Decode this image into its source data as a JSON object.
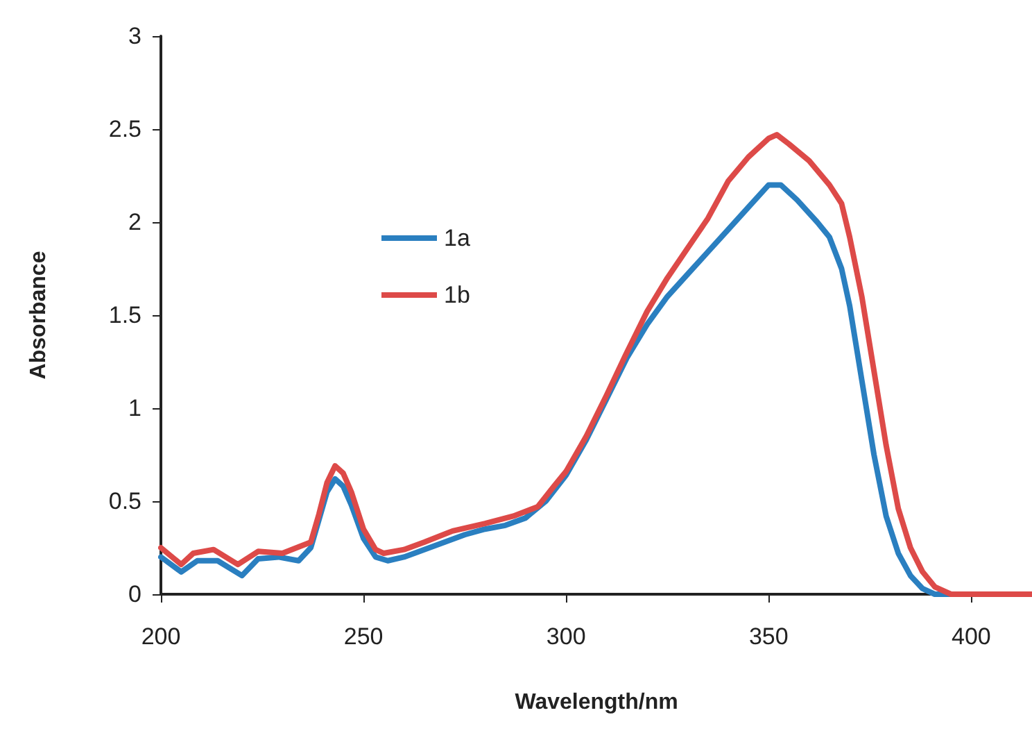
{
  "chart_data": {
    "type": "line",
    "xlabel": "Wavelength/nm",
    "ylabel": "Absorbance",
    "xlim": [
      200,
      415
    ],
    "xticks": [
      200,
      250,
      300,
      350,
      400
    ],
    "ylim": [
      0,
      3
    ],
    "yticks": [
      0,
      0.5,
      1,
      1.5,
      2,
      2.5,
      3
    ],
    "grid": false,
    "legend": "top left",
    "marker": "none",
    "line_style": "solid",
    "series": [
      {
        "name": "1a",
        "color": "#2a7fc0",
        "x": [
          200,
          205,
          209,
          214,
          220,
          224,
          229,
          234,
          237,
          239,
          241,
          243,
          245,
          247,
          250,
          253,
          256,
          260,
          265,
          270,
          275,
          280,
          285,
          290,
          295,
          300,
          305,
          310,
          315,
          320,
          325,
          330,
          335,
          340,
          345,
          350,
          353,
          357,
          362,
          365,
          368,
          370,
          373,
          376,
          379,
          382,
          385,
          388,
          391,
          415
        ],
        "values": [
          0.2,
          0.12,
          0.18,
          0.18,
          0.1,
          0.19,
          0.2,
          0.18,
          0.25,
          0.4,
          0.55,
          0.62,
          0.58,
          0.48,
          0.3,
          0.2,
          0.18,
          0.2,
          0.24,
          0.28,
          0.32,
          0.35,
          0.37,
          0.41,
          0.5,
          0.64,
          0.83,
          1.05,
          1.27,
          1.45,
          1.6,
          1.72,
          1.84,
          1.96,
          2.08,
          2.2,
          2.2,
          2.12,
          2.0,
          1.92,
          1.75,
          1.55,
          1.15,
          0.75,
          0.42,
          0.22,
          0.1,
          0.03,
          0,
          0
        ]
      },
      {
        "name": "1b",
        "color": "#dd4a48",
        "x": [
          200,
          205,
          208,
          213,
          219,
          224,
          230,
          237,
          239,
          241,
          243,
          245,
          247,
          250,
          253,
          255,
          260,
          265,
          272,
          280,
          287,
          293,
          297,
          300,
          305,
          310,
          315,
          320,
          325,
          330,
          335,
          340,
          345,
          350,
          352,
          355,
          360,
          365,
          368,
          370,
          373,
          376,
          379,
          382,
          385,
          388,
          391,
          395,
          415
        ],
        "values": [
          0.25,
          0.16,
          0.22,
          0.24,
          0.16,
          0.23,
          0.22,
          0.28,
          0.43,
          0.6,
          0.69,
          0.65,
          0.55,
          0.35,
          0.24,
          0.22,
          0.24,
          0.28,
          0.34,
          0.38,
          0.42,
          0.47,
          0.58,
          0.66,
          0.85,
          1.07,
          1.3,
          1.52,
          1.7,
          1.86,
          2.02,
          2.22,
          2.35,
          2.45,
          2.47,
          2.42,
          2.33,
          2.2,
          2.1,
          1.92,
          1.6,
          1.2,
          0.8,
          0.46,
          0.25,
          0.12,
          0.04,
          0,
          0
        ]
      }
    ]
  }
}
